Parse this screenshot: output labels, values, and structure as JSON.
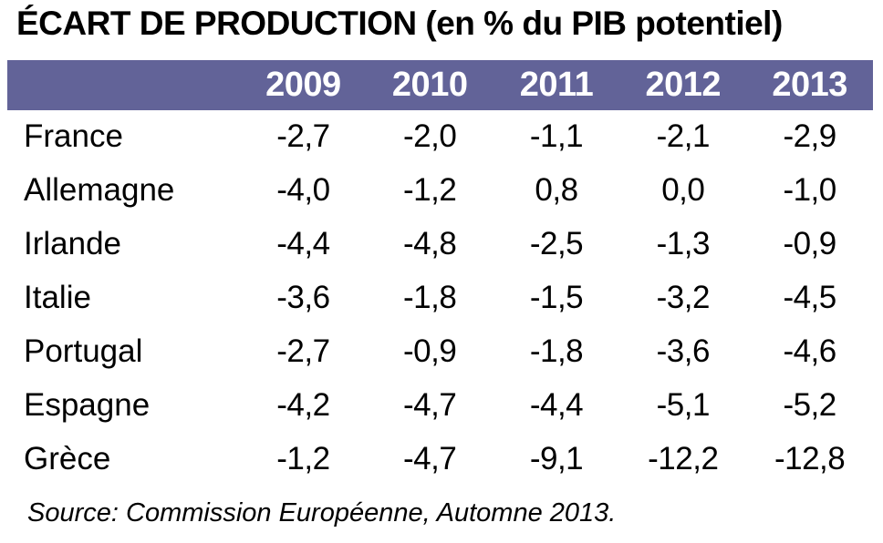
{
  "title": "ÉCART DE PRODUCTION (en % du PIB potentiel)",
  "source_note": "Source: Commission Européenne, Automne 2013.",
  "colors": {
    "header_bg": "#626398",
    "header_text": "#ffffff",
    "body_text": "#000000",
    "background": "#ffffff"
  },
  "table": {
    "years": [
      "2009",
      "2010",
      "2011",
      "2012",
      "2013"
    ],
    "rows": [
      {
        "label": "France",
        "values": [
          "-2,7",
          "-2,0",
          "-1,1",
          "-2,1",
          "-2,9"
        ]
      },
      {
        "label": "Allemagne",
        "values": [
          "-4,0",
          "-1,2",
          "0,8",
          "0,0",
          "-1,0"
        ]
      },
      {
        "label": "Irlande",
        "values": [
          "-4,4",
          "-4,8",
          "-2,5",
          "-1,3",
          "-0,9"
        ]
      },
      {
        "label": "Italie",
        "values": [
          "-3,6",
          "-1,8",
          "-1,5",
          "-3,2",
          "-4,5"
        ]
      },
      {
        "label": "Portugal",
        "values": [
          "-2,7",
          "-0,9",
          "-1,8",
          "-3,6",
          "-4,6"
        ]
      },
      {
        "label": "Espagne",
        "values": [
          "-4,2",
          "-4,7",
          "-4,4",
          "-5,1",
          "-5,2"
        ]
      },
      {
        "label": "Grèce",
        "values": [
          "-1,2",
          "-4,7",
          "-9,1",
          "-12,2",
          "-12,8"
        ]
      }
    ]
  },
  "chart_data": {
    "type": "table",
    "title": "ÉCART DE PRODUCTION (en % du PIB potentiel)",
    "columns": [
      "2009",
      "2010",
      "2011",
      "2012",
      "2013"
    ],
    "row_labels": [
      "France",
      "Allemagne",
      "Irlande",
      "Italie",
      "Portugal",
      "Espagne",
      "Grèce"
    ],
    "series": [
      {
        "name": "France",
        "values": [
          -2.7,
          -2.0,
          -1.1,
          -2.1,
          -2.9
        ]
      },
      {
        "name": "Allemagne",
        "values": [
          -4.0,
          -1.2,
          0.8,
          0.0,
          -1.0
        ]
      },
      {
        "name": "Irlande",
        "values": [
          -4.4,
          -4.8,
          -2.5,
          -1.3,
          -0.9
        ]
      },
      {
        "name": "Italie",
        "values": [
          -3.6,
          -1.8,
          -1.5,
          -3.2,
          -4.5
        ]
      },
      {
        "name": "Portugal",
        "values": [
          -2.7,
          -0.9,
          -1.8,
          -3.6,
          -4.6
        ]
      },
      {
        "name": "Espagne",
        "values": [
          -4.2,
          -4.7,
          -4.4,
          -5.1,
          -5.2
        ]
      },
      {
        "name": "Grèce",
        "values": [
          -1.2,
          -4.7,
          -9.1,
          -12.2,
          -12.8
        ]
      }
    ],
    "units": "% du PIB potentiel",
    "decimal_separator": ",",
    "source": "Source: Commission Européenne, Automne 2013."
  }
}
